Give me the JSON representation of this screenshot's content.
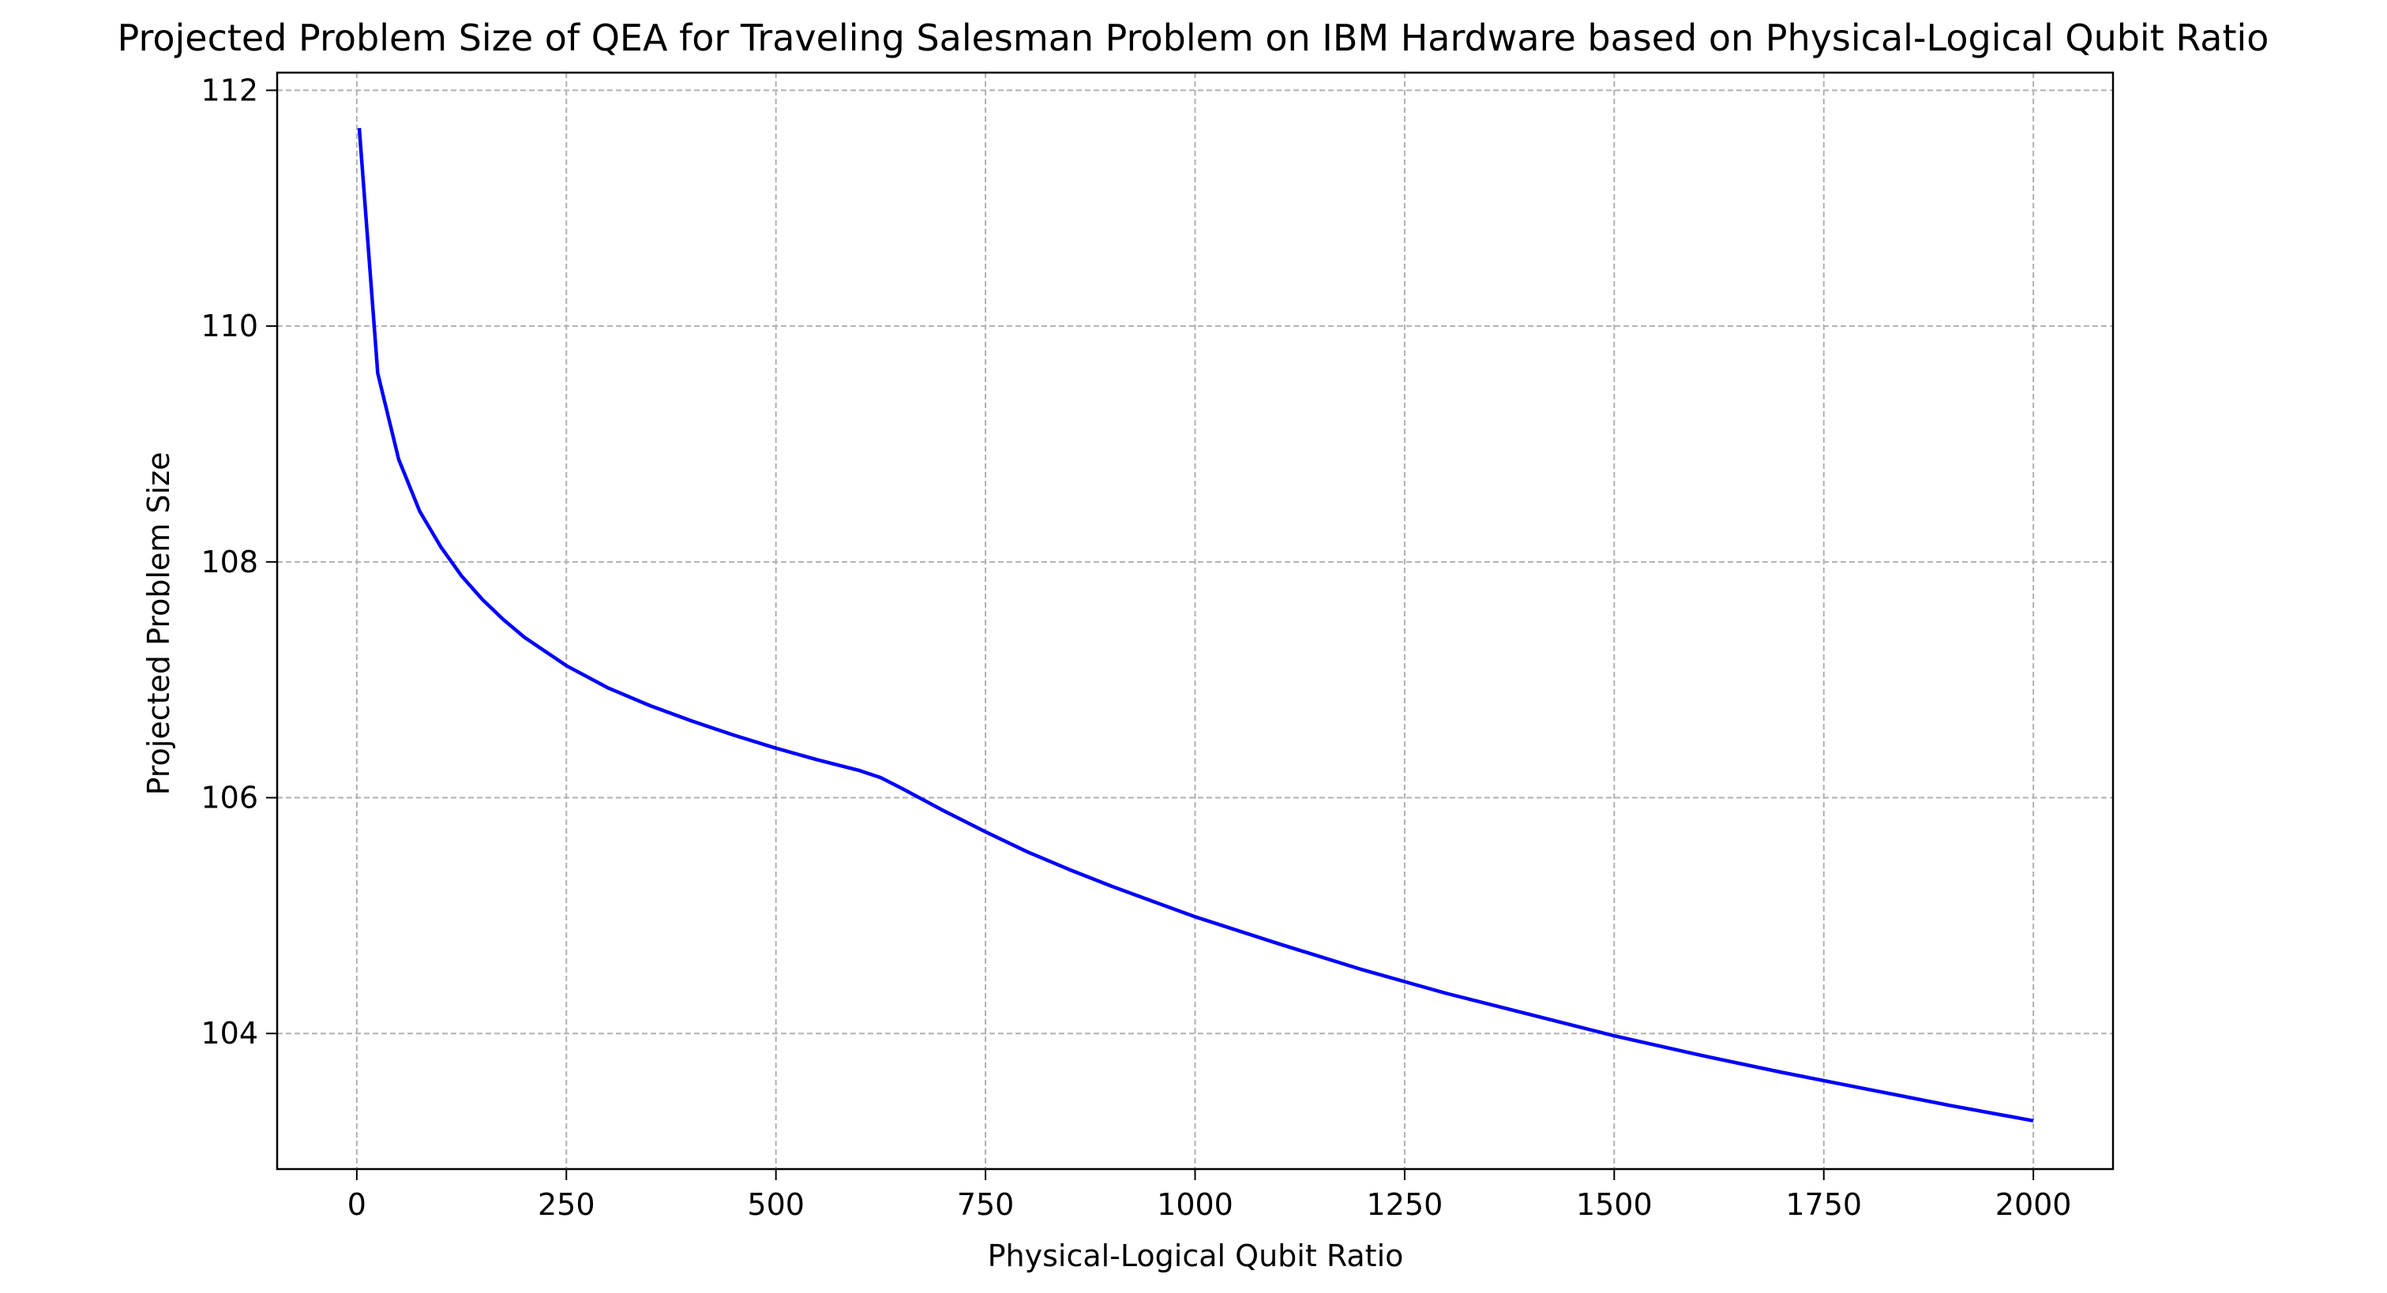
{
  "chart_data": {
    "type": "line",
    "title": "Projected Problem Size of QEA for Traveling Salesman Problem on IBM Hardware based on Physical-Logical Qubit Ratio",
    "xlabel": "Physical-Logical Qubit Ratio",
    "ylabel": "Projected Problem Size",
    "xlim": [
      -95,
      2095
    ],
    "ylim": [
      102.85,
      112.15
    ],
    "xticks": [
      0,
      250,
      500,
      750,
      1000,
      1250,
      1500,
      1750,
      2000
    ],
    "yticks": [
      104,
      106,
      108,
      110,
      112
    ],
    "grid": true,
    "line_color": "#0000ff",
    "series": [
      {
        "x": [
          3,
          25,
          50,
          75,
          100,
          125,
          150,
          175,
          200,
          250,
          300,
          350,
          400,
          450,
          500,
          550,
          600,
          625,
          650,
          700,
          750,
          800,
          850,
          900,
          950,
          1000,
          1100,
          1200,
          1300,
          1400,
          1500,
          1600,
          1700,
          1800,
          1900,
          2000
        ],
        "y": [
          111.68,
          109.6,
          108.87,
          108.43,
          108.13,
          107.88,
          107.68,
          107.51,
          107.36,
          107.12,
          106.93,
          106.78,
          106.65,
          106.53,
          106.42,
          106.32,
          106.23,
          106.17,
          106.08,
          105.89,
          105.71,
          105.54,
          105.39,
          105.25,
          105.12,
          104.99,
          104.76,
          104.54,
          104.34,
          104.16,
          103.98,
          103.82,
          103.67,
          103.53,
          103.39,
          103.26
        ]
      }
    ]
  }
}
